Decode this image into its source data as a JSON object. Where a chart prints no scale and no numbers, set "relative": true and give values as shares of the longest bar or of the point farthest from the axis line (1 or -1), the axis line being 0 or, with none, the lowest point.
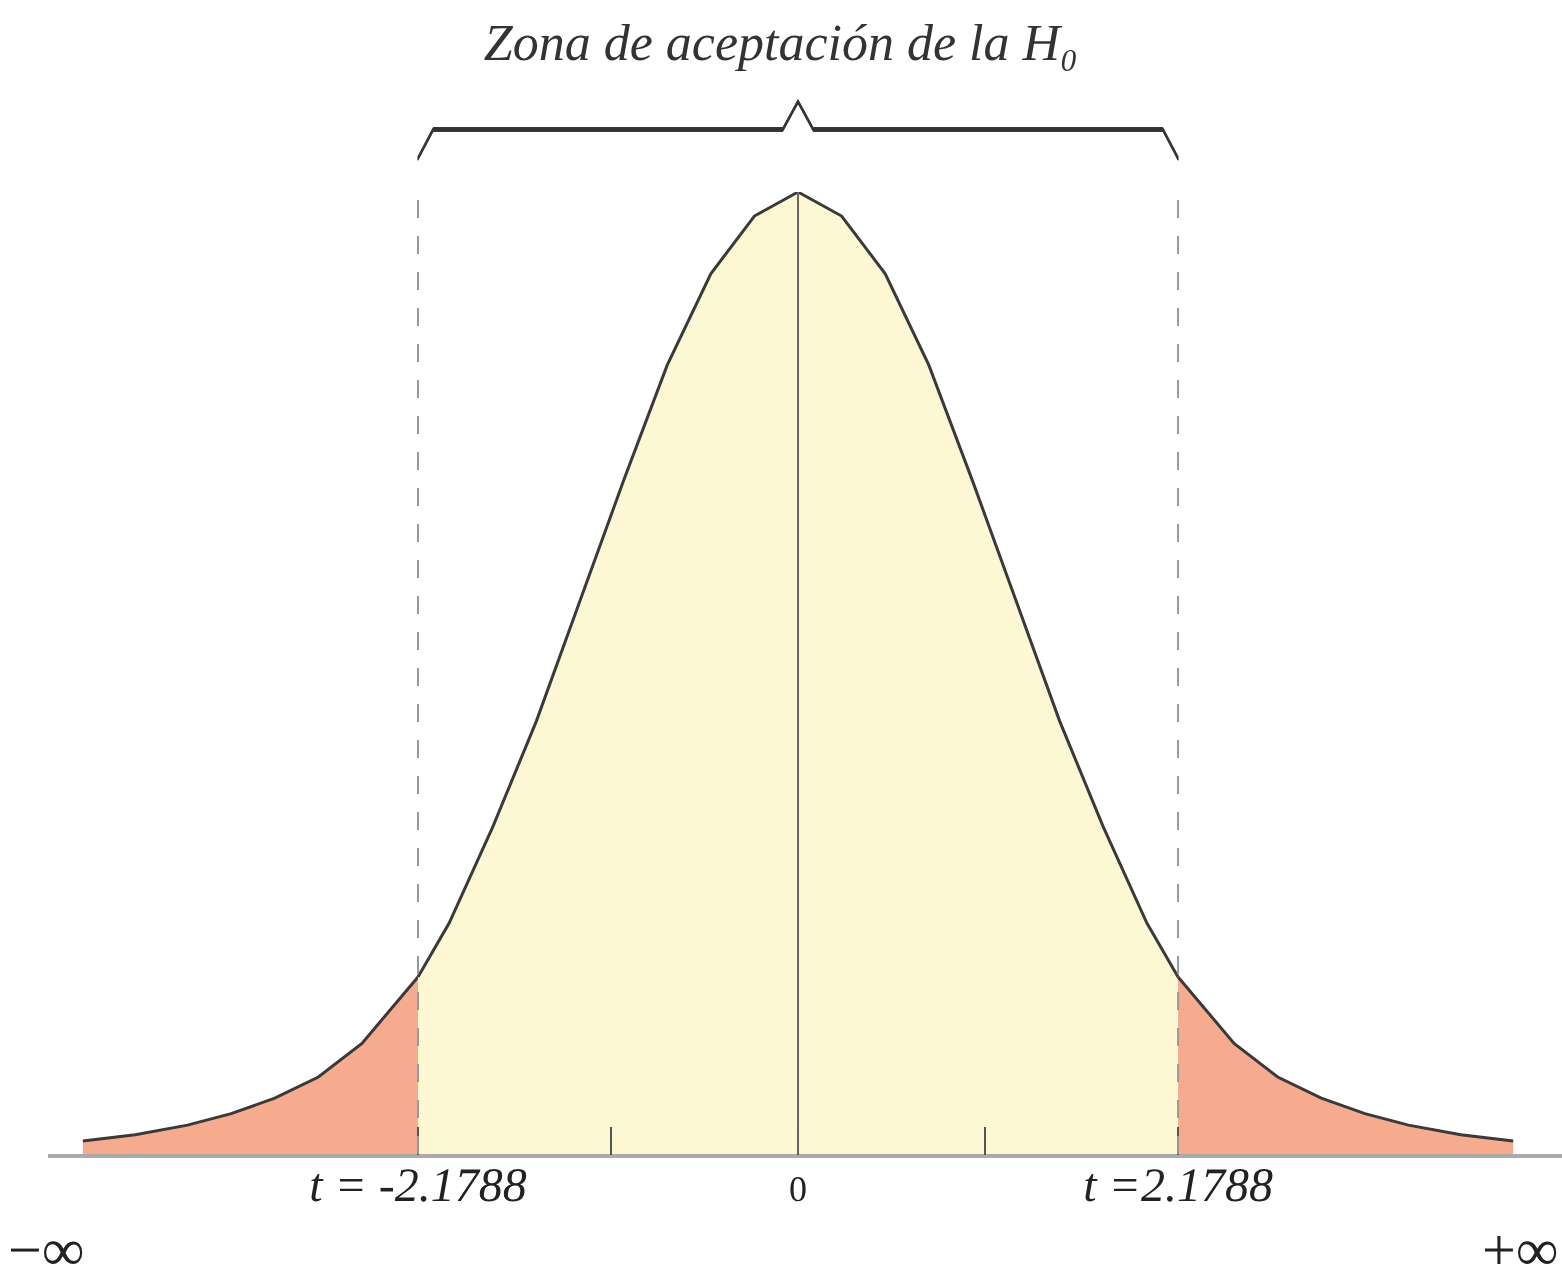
{
  "chart_data": {
    "type": "area",
    "relative": true,
    "title": "Zona de aceptación de la H₀",
    "xlim": [
      -4.3,
      4.38
    ],
    "xticks": [
      {
        "value": -2.1788,
        "label": "t = -2.1788"
      },
      {
        "value": -1.07,
        "label": null
      },
      0,
      {
        "value": 1.07,
        "label": null
      },
      {
        "value": 2.1788,
        "label": "t =2.1788"
      }
    ],
    "series": [
      {
        "color": "#f6ab8f",
        "x": [
          -4.1,
          -3.8,
          -3.5,
          -3.25,
          -3,
          -2.75,
          -2.5,
          -2.1788
        ],
        "values": [
          0.0135,
          0.02,
          0.03,
          0.042,
          0.058,
          0.08,
          0.115,
          0.184
        ]
      },
      {
        "color": "#fdf8d3",
        "x": [
          -2.1788,
          -2,
          -1.75,
          -1.5,
          -1.25,
          -1,
          -0.75,
          -0.5,
          -0.25,
          0,
          0.25,
          0.5,
          0.75,
          1,
          1.25,
          1.5,
          1.75,
          2,
          2.1788
        ],
        "values": [
          0.184,
          0.24,
          0.34,
          0.45,
          0.575,
          0.7,
          0.82,
          0.915,
          0.975,
          1,
          0.975,
          0.915,
          0.82,
          0.7,
          0.575,
          0.45,
          0.34,
          0.24,
          0.184
        ]
      },
      {
        "color": "#f6ab8f",
        "x": [
          2.1788,
          2.5,
          2.75,
          3,
          3.25,
          3.5,
          3.8,
          4.1
        ],
        "values": [
          0.184,
          0.115,
          0.08,
          0.058,
          0.042,
          0.03,
          0.02,
          0.0135
        ]
      }
    ],
    "ref_lines": [
      {
        "axis": "x",
        "value": -2.1788,
        "color": "#999999",
        "line_style": "dashed"
      },
      {
        "axis": "x",
        "value": 0,
        "color": "#666666",
        "line_style": "solid"
      },
      {
        "axis": "x",
        "value": 2.1788,
        "color": "#999999",
        "line_style": "dashed"
      }
    ],
    "annotations": [
      "−∞",
      "+∞"
    ]
  }
}
